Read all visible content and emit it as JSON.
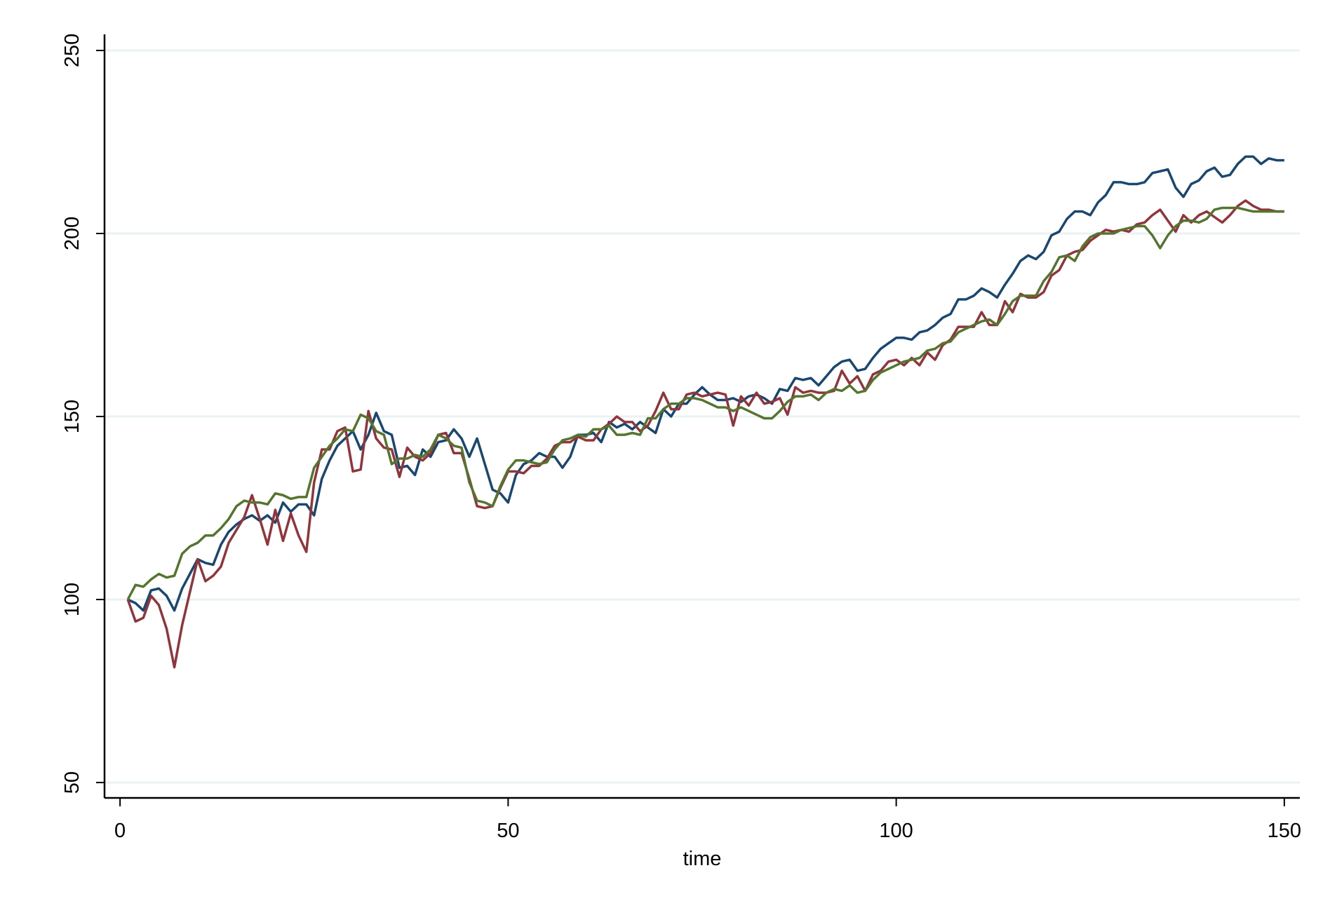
{
  "chart_data": {
    "type": "line",
    "x_label": "time",
    "x": [
      1,
      2,
      3,
      4,
      5,
      6,
      7,
      8,
      9,
      10,
      11,
      12,
      13,
      14,
      15,
      16,
      17,
      18,
      19,
      20,
      21,
      22,
      23,
      24,
      25,
      26,
      27,
      28,
      29,
      30,
      31,
      32,
      33,
      34,
      35,
      36,
      37,
      38,
      39,
      40,
      41,
      42,
      43,
      44,
      45,
      46,
      47,
      48,
      49,
      50,
      51,
      52,
      53,
      54,
      55,
      56,
      57,
      58,
      59,
      60,
      61,
      62,
      63,
      64,
      65,
      66,
      67,
      68,
      69,
      70,
      71,
      72,
      73,
      74,
      75,
      76,
      77,
      78,
      79,
      80,
      81,
      82,
      83,
      84,
      85,
      86,
      87,
      88,
      89,
      90,
      91,
      92,
      93,
      94,
      95,
      96,
      97,
      98,
      99,
      100,
      101,
      102,
      103,
      104,
      105,
      106,
      107,
      108,
      109,
      110,
      111,
      112,
      113,
      114,
      115,
      116,
      117,
      118,
      119,
      120,
      121,
      122,
      123,
      124,
      125,
      126,
      127,
      128,
      129,
      130,
      131,
      132,
      133,
      134,
      135,
      136,
      137,
      138,
      139,
      140,
      141,
      142,
      143,
      144,
      145,
      146,
      147,
      148,
      149,
      150
    ],
    "series": [
      {
        "color": "#1a476f",
        "values": [
          100,
          99,
          97,
          102.5,
          103,
          101,
          97,
          103,
          107,
          111,
          110,
          109.5,
          115,
          118.5,
          120.5,
          122,
          123,
          121.5,
          123,
          121,
          126.5,
          124,
          126,
          126,
          123,
          133,
          138,
          142,
          144,
          146,
          141,
          145,
          151,
          146,
          145,
          136,
          136.5,
          134,
          141,
          139,
          143,
          143.5,
          146.5,
          144,
          139,
          144,
          137,
          130,
          129,
          126.5,
          134,
          137,
          138,
          140,
          139,
          139,
          136,
          139,
          145,
          145,
          145.5,
          143,
          148.5,
          147,
          148,
          146.5,
          148.5,
          147,
          145.5,
          152,
          150,
          153.5,
          153.5,
          156,
          158,
          156,
          154.5,
          154.5,
          155,
          154,
          155.5,
          156,
          155,
          153.5,
          157.5,
          157,
          160.5,
          160,
          160.5,
          158.5,
          161,
          163.5,
          165,
          165.5,
          162.5,
          163,
          166,
          168.5,
          170,
          171.5,
          171.5,
          171,
          173,
          173.5,
          175,
          177,
          178,
          182,
          182,
          183,
          185,
          184,
          182.5,
          186,
          189,
          192.5,
          194,
          193,
          195,
          199.5,
          200.5,
          204,
          206,
          206,
          205,
          208.5,
          210.5,
          214,
          214,
          213.5,
          213.5,
          214,
          216.5,
          217,
          217.5,
          212.5,
          210,
          213.5,
          214.5,
          217,
          218,
          215.5,
          216,
          219,
          221,
          221,
          219,
          220.5,
          220,
          220
        ]
      },
      {
        "color": "#90353b",
        "values": [
          100,
          94,
          95,
          101,
          98.5,
          92,
          81.5,
          93,
          102,
          111,
          105,
          106.5,
          109,
          115.5,
          119,
          122.5,
          128.5,
          122,
          115,
          124.5,
          116,
          123.5,
          117.5,
          113,
          132,
          141,
          141,
          146,
          147,
          135,
          135.5,
          151.5,
          144,
          141.5,
          141,
          133.5,
          141.5,
          139,
          138,
          140,
          145,
          145.5,
          140,
          140,
          133,
          125.5,
          125,
          125.5,
          130.5,
          135,
          135,
          134.5,
          136.5,
          136.5,
          138.5,
          142,
          143,
          143,
          144.5,
          143.5,
          143.5,
          146.5,
          148,
          150,
          148.5,
          148.5,
          146,
          147.5,
          151.5,
          156.5,
          152,
          152,
          156,
          156.5,
          155.5,
          156,
          156.5,
          156,
          147.5,
          155.5,
          153,
          156.5,
          153.5,
          154,
          155,
          150.5,
          158,
          156.5,
          157,
          156.5,
          156.5,
          157,
          162.5,
          159,
          161,
          157,
          161.5,
          162.5,
          165,
          165.5,
          164,
          166,
          164,
          167.5,
          165.5,
          169.5,
          171,
          174.5,
          174.5,
          174.5,
          178.5,
          175,
          175,
          181.5,
          178.5,
          183.5,
          182.5,
          182.5,
          184,
          188.5,
          190,
          194,
          195,
          195.5,
          198,
          199.5,
          201,
          200.5,
          201,
          200.5,
          202.5,
          203,
          205,
          206.5,
          203.5,
          200.5,
          205,
          203,
          205,
          206,
          204.5,
          203,
          205,
          207.5,
          209,
          207.5,
          206.5,
          206.5,
          206,
          206
        ]
      },
      {
        "color": "#55752f",
        "values": [
          100,
          104,
          103.5,
          105.5,
          107,
          106,
          106.5,
          112.5,
          114.5,
          115.5,
          117.5,
          117.5,
          119.5,
          122,
          125.5,
          127,
          126.5,
          126.5,
          126,
          129,
          128.5,
          127.5,
          128,
          128,
          136,
          139,
          142,
          144,
          146.5,
          146,
          150.5,
          149.5,
          146,
          145,
          137,
          138.5,
          138.5,
          139.5,
          139,
          141,
          145,
          144,
          142,
          141.5,
          132,
          127,
          126.5,
          125.5,
          131,
          135.5,
          138,
          138,
          137.5,
          137,
          137.5,
          141,
          143.5,
          144,
          145,
          144.5,
          146.5,
          146.5,
          147.5,
          145,
          145,
          145.5,
          145,
          149.5,
          149.5,
          152,
          153.5,
          153.5,
          155,
          155,
          154.5,
          153.5,
          152.5,
          152.5,
          151.5,
          152.5,
          151.5,
          150.5,
          149.5,
          149.5,
          151.5,
          154,
          155.5,
          155.5,
          156,
          154.5,
          156.5,
          157.5,
          157,
          158.5,
          156.5,
          157,
          160,
          162,
          163,
          164,
          165,
          165.5,
          166,
          168,
          168.5,
          170,
          170.5,
          173,
          174,
          175,
          176,
          176.5,
          175,
          178,
          181.5,
          183,
          183,
          183,
          187,
          189.5,
          193.5,
          194,
          192.5,
          196.5,
          199,
          200,
          200,
          200,
          201,
          201.5,
          202,
          202,
          199.5,
          196,
          199.5,
          202,
          203.5,
          203.5,
          203,
          204,
          206.5,
          207,
          207,
          207,
          206.5,
          206,
          206,
          206,
          206,
          206
        ]
      }
    ],
    "xlim": [
      -2,
      152
    ],
    "xticks": [
      0,
      50,
      100,
      150
    ],
    "ylim": [
      45.8,
      254.4
    ],
    "yticks": [
      50,
      100,
      150,
      200,
      250
    ],
    "grid": true,
    "grid_color": "#eaf2f3"
  }
}
